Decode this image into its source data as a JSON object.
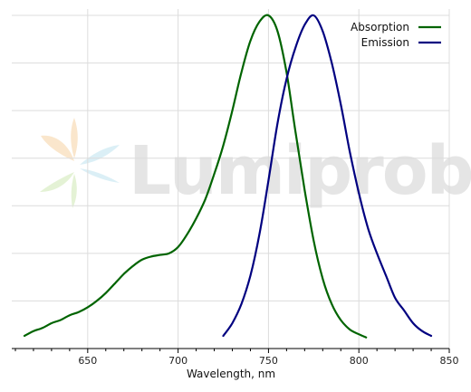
{
  "chart_data": {
    "type": "line",
    "title": "",
    "xlabel": "Wavelength, nm",
    "ylabel": "",
    "xlim": [
      608,
      850
    ],
    "ylim": [
      0,
      1.07
    ],
    "x_ticks": [
      650,
      700,
      750,
      800,
      850
    ],
    "x_tick_labels": [
      "650",
      "700",
      "750",
      "800",
      "850"
    ],
    "x_minor_step": 10,
    "y_gridlines": [
      0.15,
      0.3,
      0.45,
      0.6,
      0.75,
      0.9,
      1.05
    ],
    "grid": true,
    "legend_position": "top-right",
    "watermark": "Lumiprobe",
    "series": [
      {
        "name": "Absorption",
        "color": "#006400",
        "x": [
          615,
          620,
          625,
          630,
          635,
          640,
          645,
          650,
          655,
          660,
          665,
          670,
          675,
          680,
          685,
          690,
          695,
          700,
          705,
          710,
          715,
          720,
          725,
          730,
          735,
          740,
          745,
          750,
          755,
          760,
          765,
          770,
          775,
          780,
          785,
          790,
          795,
          800,
          804
        ],
        "y": [
          0.04,
          0.055,
          0.065,
          0.08,
          0.09,
          0.105,
          0.115,
          0.13,
          0.15,
          0.175,
          0.205,
          0.235,
          0.26,
          0.28,
          0.29,
          0.295,
          0.3,
          0.32,
          0.36,
          0.41,
          0.47,
          0.55,
          0.64,
          0.75,
          0.87,
          0.97,
          1.03,
          1.05,
          1.0,
          0.87,
          0.68,
          0.5,
          0.34,
          0.22,
          0.14,
          0.09,
          0.06,
          0.045,
          0.035
        ]
      },
      {
        "name": "Emission",
        "color": "#000080",
        "x": [
          725,
          730,
          735,
          740,
          745,
          750,
          755,
          760,
          765,
          770,
          775,
          780,
          785,
          790,
          795,
          800,
          805,
          810,
          815,
          820,
          825,
          830,
          835,
          840
        ],
        "y": [
          0.04,
          0.08,
          0.14,
          0.23,
          0.36,
          0.53,
          0.71,
          0.85,
          0.95,
          1.02,
          1.05,
          1.0,
          0.9,
          0.77,
          0.62,
          0.49,
          0.38,
          0.3,
          0.23,
          0.16,
          0.12,
          0.08,
          0.055,
          0.04
        ]
      }
    ]
  }
}
